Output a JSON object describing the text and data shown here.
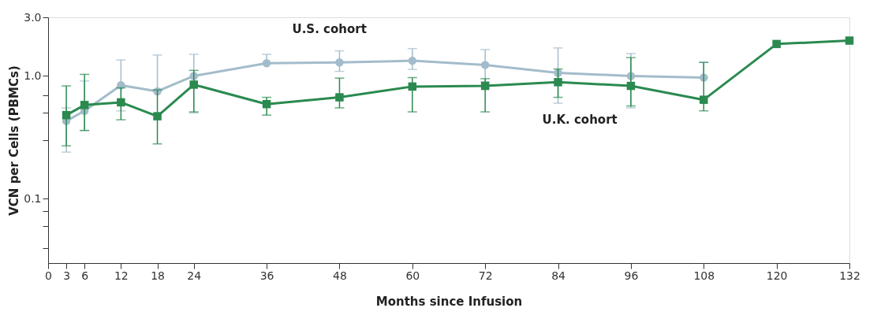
{
  "chart_data": {
    "type": "line",
    "xlabel": "Months since Infusion",
    "ylabel": "VCN per Cells (PBMCs)",
    "x": [
      3,
      6,
      12,
      18,
      24,
      36,
      48,
      60,
      72,
      84,
      96,
      108,
      120,
      132
    ],
    "series": [
      {
        "name": "U.S. cohort",
        "color": "#a3bccb",
        "marker": "circle",
        "x": [
          3,
          6,
          12,
          18,
          24,
          36,
          48,
          60,
          72,
          84,
          96,
          108
        ],
        "values": [
          0.43,
          0.52,
          0.84,
          0.75,
          1.0,
          1.27,
          1.29,
          1.33,
          1.23,
          1.06,
          1.0,
          0.97
        ],
        "errors": [
          [
            0.24,
            0.55
          ],
          [
            0.36,
            0.91
          ],
          [
            0.52,
            1.35
          ],
          [
            0.75,
            1.48
          ],
          [
            0.5,
            1.5
          ],
          [
            1.27,
            1.5
          ],
          [
            1.09,
            1.6
          ],
          [
            1.13,
            1.67
          ],
          [
            0.9,
            1.64
          ],
          [
            0.6,
            1.69
          ],
          [
            0.55,
            1.52
          ],
          [
            0.97,
            1.29
          ]
        ]
      },
      {
        "name": "U.K. cohort",
        "color": "#2a8a4f",
        "marker": "square",
        "values": [
          0.48,
          0.58,
          0.61,
          0.47,
          0.85,
          0.59,
          0.67,
          0.82,
          0.83,
          0.89,
          0.83,
          0.64,
          1.82,
          1.94
        ],
        "errors": [
          [
            0.27,
            0.83
          ],
          [
            0.36,
            1.03
          ],
          [
            0.44,
            0.8
          ],
          [
            0.28,
            0.77
          ],
          [
            0.51,
            1.11
          ],
          [
            0.48,
            0.67
          ],
          [
            0.55,
            0.96
          ],
          [
            0.51,
            0.97
          ],
          [
            0.51,
            0.95
          ],
          [
            0.67,
            1.14
          ],
          [
            0.57,
            1.41
          ],
          [
            0.52,
            1.29
          ],
          null,
          null
        ]
      }
    ],
    "xlim": [
      0,
      132
    ],
    "xticks": [
      0,
      3,
      6,
      12,
      18,
      24,
      36,
      48,
      60,
      72,
      84,
      96,
      108,
      120,
      132
    ],
    "log": "y",
    "ylim": [
      0.03,
      3
    ],
    "yticks": [
      {
        "value": 3,
        "label": "3.0"
      },
      {
        "value": 1,
        "label": "1.0"
      },
      0.1,
      {
        "value": 0.7,
        "label": null
      },
      {
        "value": 0.5,
        "label": null
      },
      {
        "value": 0.3,
        "label": null
      },
      {
        "value": 0.08,
        "label": null
      },
      {
        "value": 0.06,
        "label": null
      },
      {
        "value": 0.04,
        "label": null
      }
    ],
    "grid": false,
    "legend": false,
    "line_style": "solid"
  }
}
